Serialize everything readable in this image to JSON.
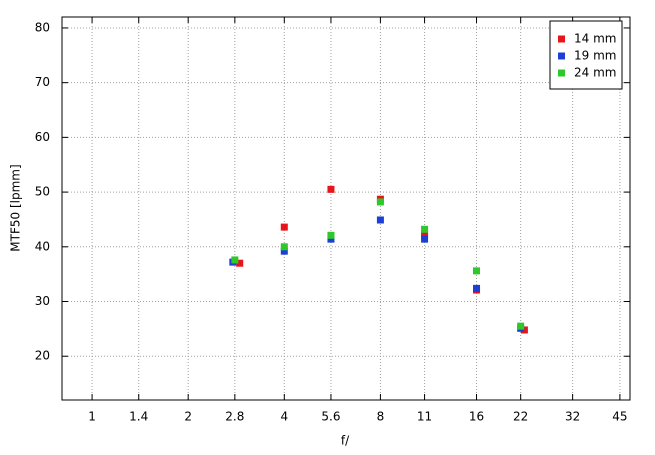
{
  "chart_data": {
    "type": "scatter",
    "x_label": "f/",
    "y_label": "MTF50 [lpmm]",
    "xscale": "log",
    "grid": true,
    "legend": "upper right",
    "xlim": [
      0.805,
      48.4
    ],
    "xticks": [
      1,
      1.4,
      2,
      2.8,
      4,
      5.6,
      8,
      11,
      16,
      22,
      32,
      45
    ],
    "ylim": [
      12,
      82
    ],
    "yticks": [
      20,
      30,
      40,
      50,
      60,
      70,
      80
    ],
    "series": [
      {
        "name": "14 mm",
        "color": "#e8141a",
        "x": [
          2.9,
          4,
          5.6,
          8,
          11,
          16,
          22.6
        ],
        "values": [
          37.0,
          43.6,
          50.5,
          48.7,
          42.3,
          32.1,
          24.8
        ]
      },
      {
        "name": "19 mm",
        "color": "#1c3fd6",
        "x": [
          2.76,
          4,
          5.6,
          8,
          11,
          16,
          22
        ],
        "values": [
          37.2,
          39.2,
          41.4,
          44.9,
          41.4,
          32.4,
          25.1
        ]
      },
      {
        "name": "24 mm",
        "color": "#2ec82a",
        "x": [
          2.8,
          4,
          5.6,
          8,
          11,
          16,
          22
        ],
        "values": [
          37.6,
          40.0,
          42.1,
          48.2,
          43.2,
          35.6,
          25.5
        ]
      }
    ]
  }
}
